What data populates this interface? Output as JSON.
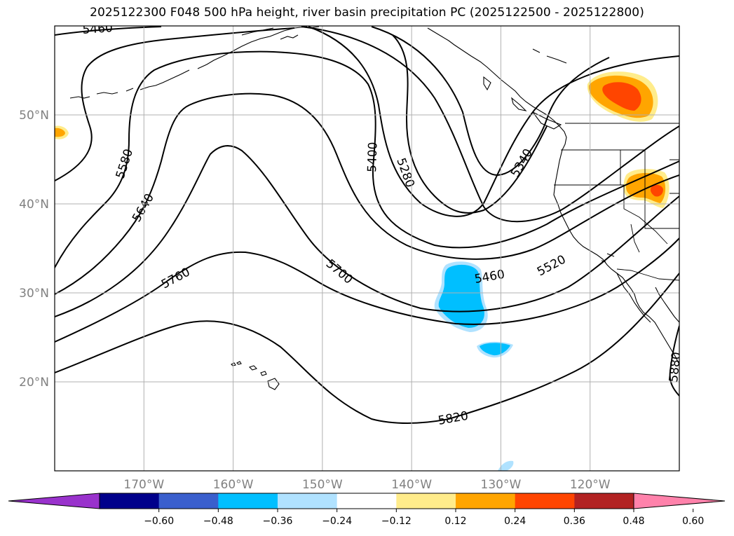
{
  "title": "2025122300 F048 500 hPa height, river basin precipitation PC (2025122500 - 2025122800)",
  "map": {
    "projection": "PlateCarree",
    "lon_range": [
      -180,
      -110
    ],
    "lat_range": [
      10,
      60
    ],
    "gridlines": true,
    "lat_labels": [
      {
        "lat": 50,
        "text": "50°N"
      },
      {
        "lat": 40,
        "text": "40°N"
      },
      {
        "lat": 30,
        "text": "30°N"
      },
      {
        "lat": 20,
        "text": "20°N"
      }
    ],
    "lon_labels": [
      {
        "lon": -170,
        "text": "170°W"
      },
      {
        "lon": -160,
        "text": "160°W"
      },
      {
        "lon": -150,
        "text": "150°W"
      },
      {
        "lon": -140,
        "text": "140°W"
      },
      {
        "lon": -130,
        "text": "130°W"
      },
      {
        "lon": -120,
        "text": "120°W"
      }
    ]
  },
  "chart_data": {
    "type": "contour",
    "field": "500 hPa geopotential height",
    "contour_levels": [
      5280,
      5340,
      5400,
      5460,
      5520,
      5580,
      5640,
      5700,
      5760,
      5820,
      5880
    ],
    "contour_labels_shown": [
      "5460",
      "5580",
      "5400",
      "5280",
      "5340",
      "5640",
      "5700",
      "5760",
      "5460",
      "5520",
      "5820",
      "5880"
    ],
    "shaded_field": "river basin precipitation PC",
    "colorbar": {
      "orientation": "horizontal",
      "extend": "both",
      "ticks": [
        "-0.60",
        "-0.48",
        "-0.36",
        "-0.24",
        "-0.12",
        "0.12",
        "0.24",
        "0.36",
        "0.48",
        "0.60"
      ],
      "colors": [
        "#9932cc",
        "#00008b",
        "#3a5fcd",
        "#00bfff",
        "#b0e2ff",
        "#ffffff",
        "#ffec8b",
        "#ffa500",
        "#ff4500",
        "#b22222",
        "#ff82ab"
      ]
    },
    "shaded_regions": [
      {
        "name": "positive anomaly, British Columbia",
        "center_lon": -117,
        "center_lat": 52,
        "peak": 0.48
      },
      {
        "name": "positive anomaly, northern California / Nevada",
        "center_lon": -113,
        "center_lat": 42,
        "peak": 0.36
      },
      {
        "name": "positive anomaly, west edge",
        "center_lon": -180,
        "center_lat": 48,
        "peak": 0.36
      },
      {
        "name": "negative anomaly, subtropical Pacific",
        "center_lon": -134,
        "center_lat": 29,
        "peak": -0.36
      },
      {
        "name": "negative anomaly, south of trough",
        "center_lon": -130,
        "center_lat": 23.5,
        "peak": -0.36
      },
      {
        "name": "negative anomaly, bottom edge",
        "center_lon": -130,
        "center_lat": 10.5,
        "peak": -0.24
      }
    ]
  }
}
